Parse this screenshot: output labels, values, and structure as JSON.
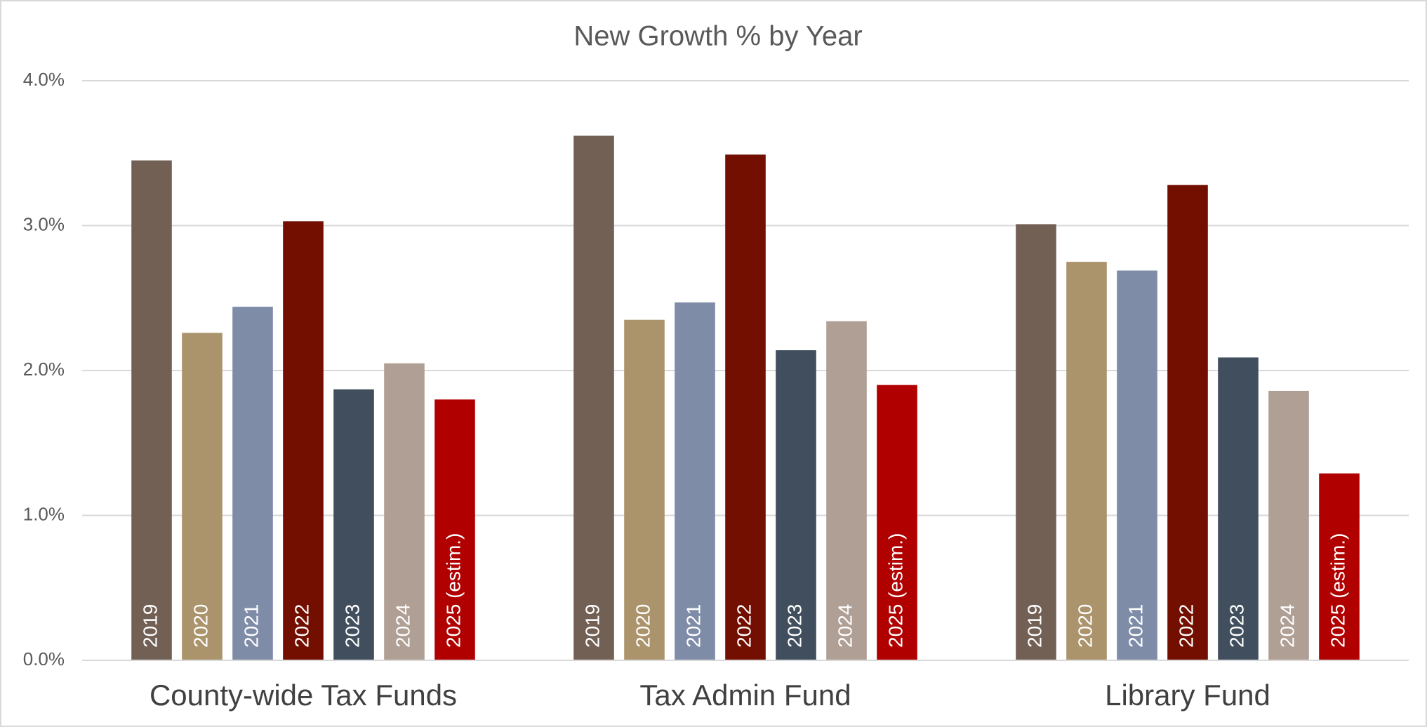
{
  "chart_data": {
    "type": "bar",
    "title": "New Growth % by Year",
    "categories": [
      "County-wide Tax Funds",
      "Tax Admin Fund",
      "Library Fund"
    ],
    "series": [
      {
        "name": "2019",
        "color": "#726055",
        "values": [
          3.45,
          3.62,
          3.01
        ]
      },
      {
        "name": "2020",
        "color": "#ab946c",
        "values": [
          2.26,
          2.35,
          2.75
        ]
      },
      {
        "name": "2021",
        "color": "#7f8ca8",
        "values": [
          2.44,
          2.47,
          2.69
        ]
      },
      {
        "name": "2022",
        "color": "#720f00",
        "values": [
          3.03,
          3.49,
          3.28
        ]
      },
      {
        "name": "2023",
        "color": "#404e5e",
        "values": [
          1.87,
          2.14,
          2.09
        ]
      },
      {
        "name": "2024",
        "color": "#b09f95",
        "values": [
          2.05,
          2.34,
          1.86
        ]
      },
      {
        "name": "2025 (estim.)",
        "color": "#b00000",
        "values": [
          1.8,
          1.9,
          1.29
        ]
      }
    ],
    "ylim": [
      0,
      4
    ],
    "yticks": [
      {
        "value": 0,
        "label": "0.0%"
      },
      {
        "value": 1,
        "label": "1.0%"
      },
      {
        "value": 2,
        "label": "2.0%"
      },
      {
        "value": 3,
        "label": "3.0%"
      },
      {
        "value": 4,
        "label": "4.0%"
      }
    ],
    "grid": true
  }
}
